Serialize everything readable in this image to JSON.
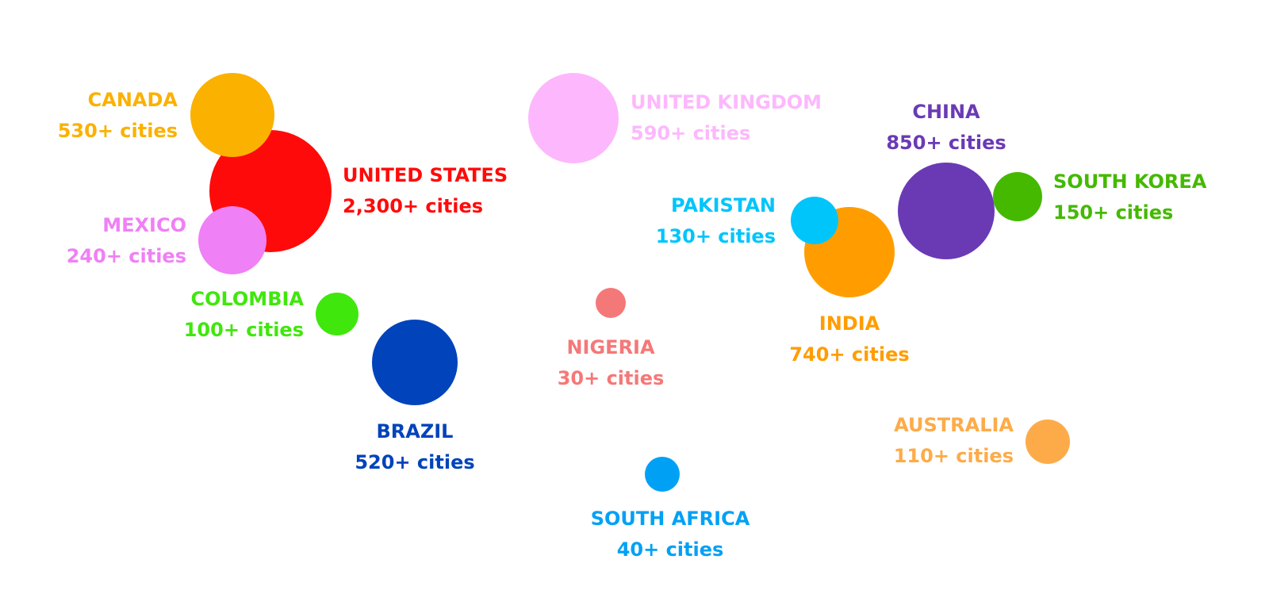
{
  "countries": [
    {
      "name": "UNITED STATES",
      "count": "2,300+ cities",
      "color": "#ff0a0a"
    },
    {
      "name": "CANADA",
      "count": "530+ cities",
      "color": "#fbb100"
    },
    {
      "name": "MEXICO",
      "count": "240+ cities",
      "color": "#ef80f5"
    },
    {
      "name": "COLOMBIA",
      "count": "100+ cities",
      "color": "#40e70c"
    },
    {
      "name": "BRAZIL",
      "count": "520+ cities",
      "color": "#0043bb"
    },
    {
      "name": "UNITED KINGDOM",
      "count": "590+ cities",
      "color": "#fdb8fd"
    },
    {
      "name": "NIGERIA",
      "count": "30+ cities",
      "color": "#f57878"
    },
    {
      "name": "SOUTH AFRICA",
      "count": "40+ cities",
      "color": "#00a1f5"
    },
    {
      "name": "INDIA",
      "count": "740+ cities",
      "color": "#ff9d00"
    },
    {
      "name": "PAKISTAN",
      "count": "130+ cities",
      "color": "#00c5fb"
    },
    {
      "name": "CHINA",
      "count": "850+ cities",
      "color": "#6a3ab5"
    },
    {
      "name": "SOUTH KOREA",
      "count": "150+ cities",
      "color": "#44b900"
    },
    {
      "name": "AUSTRALIA",
      "count": "110+ cities",
      "color": "#fdab49"
    }
  ]
}
